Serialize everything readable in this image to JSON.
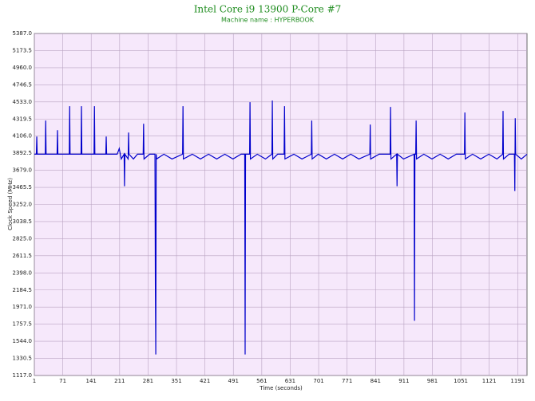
{
  "chart_data": {
    "type": "line",
    "title": "Intel Core i9 13900 P-Core #7",
    "subtitle": "Machine name : HYPERBOOK",
    "x_label": "Time (seconds)",
    "y_label": "Clock Speed (MHz)",
    "xlim": [
      1,
      1214
    ],
    "ylim": [
      1117,
      5387
    ],
    "xticks": [
      1,
      71,
      141,
      211,
      281,
      351,
      421,
      491,
      561,
      631,
      701,
      771,
      841,
      911,
      981,
      1051,
      1121,
      1191
    ],
    "yticks": [
      {
        "value": 1117,
        "label": "1117.0"
      },
      1330.5,
      {
        "value": 1544,
        "label": "1544.0"
      },
      1757.5,
      {
        "value": 1971,
        "label": "1971.0"
      },
      2184.5,
      {
        "value": 2398,
        "label": "2398.0"
      },
      2611.5,
      {
        "value": 2825,
        "label": "2825.0"
      },
      3038.5,
      {
        "value": 3252,
        "label": "3252.0"
      },
      3465.5,
      {
        "value": 3679,
        "label": "3679.0"
      },
      3892.5,
      {
        "value": 4106,
        "label": "4106.0"
      },
      4319.5,
      {
        "value": 4533,
        "label": "4533.0"
      },
      4746.5,
      {
        "value": 4960,
        "label": "4960.0"
      },
      5173.5,
      {
        "value": 5387,
        "label": "5387.0"
      }
    ],
    "grid": true,
    "background": "#f6e8fb",
    "x": [
      1,
      6,
      7,
      8,
      28,
      29,
      30,
      57,
      58,
      59,
      87,
      88,
      89,
      116,
      117,
      118,
      148,
      149,
      150,
      177,
      178,
      179,
      205,
      210,
      215,
      222,
      223,
      224,
      232,
      233,
      234,
      245,
      255,
      269,
      270,
      271,
      285,
      298,
      299,
      300,
      301,
      302,
      320,
      340,
      366,
      367,
      368,
      390,
      410,
      430,
      450,
      470,
      490,
      510,
      519,
      520,
      521,
      531,
      532,
      533,
      550,
      570,
      586,
      587,
      588,
      600,
      616,
      617,
      618,
      640,
      660,
      683,
      684,
      685,
      700,
      720,
      740,
      760,
      780,
      800,
      827,
      828,
      829,
      850,
      877,
      878,
      879,
      893,
      894,
      895,
      910,
      936,
      937,
      938,
      940,
      941,
      942,
      960,
      980,
      1000,
      1020,
      1040,
      1060,
      1061,
      1062,
      1080,
      1100,
      1120,
      1140,
      1154,
      1155,
      1156,
      1170,
      1183,
      1184,
      1185,
      1186,
      1200,
      1214
    ],
    "series": [
      {
        "color": "#0000cc",
        "values": [
          3880,
          3880,
          4100,
          3880,
          3880,
          4300,
          3880,
          3880,
          4180,
          3880,
          3880,
          4480,
          3880,
          3880,
          4480,
          3880,
          3880,
          4480,
          3880,
          3880,
          4100,
          3880,
          3880,
          3950,
          3820,
          3880,
          3480,
          3880,
          3820,
          4150,
          3880,
          3820,
          3880,
          3880,
          4260,
          3820,
          3880,
          3880,
          2250,
          1380,
          3880,
          3820,
          3880,
          3820,
          3880,
          4480,
          3820,
          3880,
          3820,
          3880,
          3820,
          3880,
          3820,
          3880,
          3880,
          1380,
          3880,
          3880,
          4530,
          3820,
          3880,
          3820,
          3880,
          4550,
          3820,
          3880,
          3880,
          4480,
          3820,
          3880,
          3820,
          3880,
          4300,
          3820,
          3880,
          3820,
          3880,
          3820,
          3880,
          3820,
          3880,
          4250,
          3820,
          3880,
          3880,
          4470,
          3820,
          3880,
          3480,
          3880,
          3820,
          3880,
          1800,
          3880,
          3880,
          4300,
          3820,
          3880,
          3820,
          3880,
          3820,
          3880,
          3880,
          4400,
          3820,
          3880,
          3820,
          3880,
          3820,
          3880,
          4420,
          3820,
          3880,
          3880,
          3420,
          4330,
          3880,
          3820,
          3880
        ]
      }
    ]
  }
}
